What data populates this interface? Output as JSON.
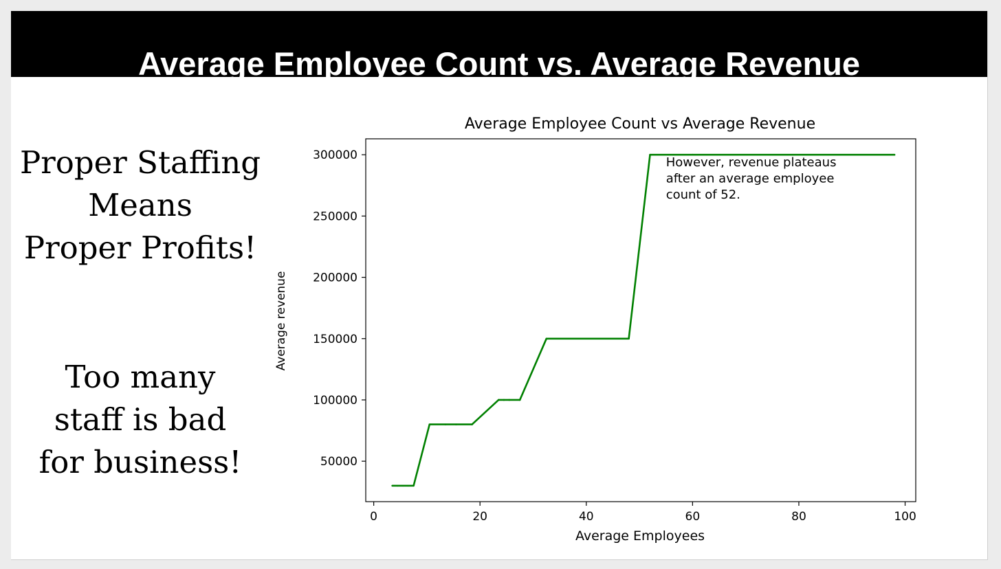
{
  "slide": {
    "title": "Average Employee Count vs. Average Revenue",
    "text_block_1": [
      "Proper Staffing",
      "Means",
      "Proper Profits!"
    ],
    "text_block_2": [
      "Too many",
      "staff is bad",
      "for business!"
    ]
  },
  "colors": {
    "line": "#008000",
    "title_bar": "#000000",
    "slide_bg": "#ffffff"
  },
  "chart_data": {
    "type": "line",
    "title": "Average Employee Count vs Average Revenue",
    "xlabel": "Average Employees",
    "ylabel": "Average revenue",
    "xlim": [
      -1.5,
      102
    ],
    "ylim": [
      17000,
      313000
    ],
    "xticks": [
      0,
      20,
      40,
      60,
      80,
      100
    ],
    "yticks": [
      50000,
      100000,
      150000,
      200000,
      250000,
      300000
    ],
    "grid": false,
    "series": [
      {
        "x": [
          3.5,
          4.5,
          5.5,
          6.5,
          7.5,
          10.5,
          13.5,
          15.5,
          18.5,
          23.5,
          24.5,
          25.5,
          27.5,
          32.5,
          40.5,
          41.5,
          48,
          52,
          60,
          98
        ],
        "values": [
          30000,
          30000,
          30000,
          30000,
          30000,
          80000,
          80000,
          80000,
          80000,
          100000,
          100000,
          100000,
          100000,
          150000,
          150000,
          150000,
          150000,
          300000,
          300000,
          300000
        ]
      }
    ],
    "annotation": {
      "lines": [
        "However, revenue plateaus",
        "after an average employee",
        "count of 52."
      ],
      "x": 55,
      "y": 298000
    }
  }
}
